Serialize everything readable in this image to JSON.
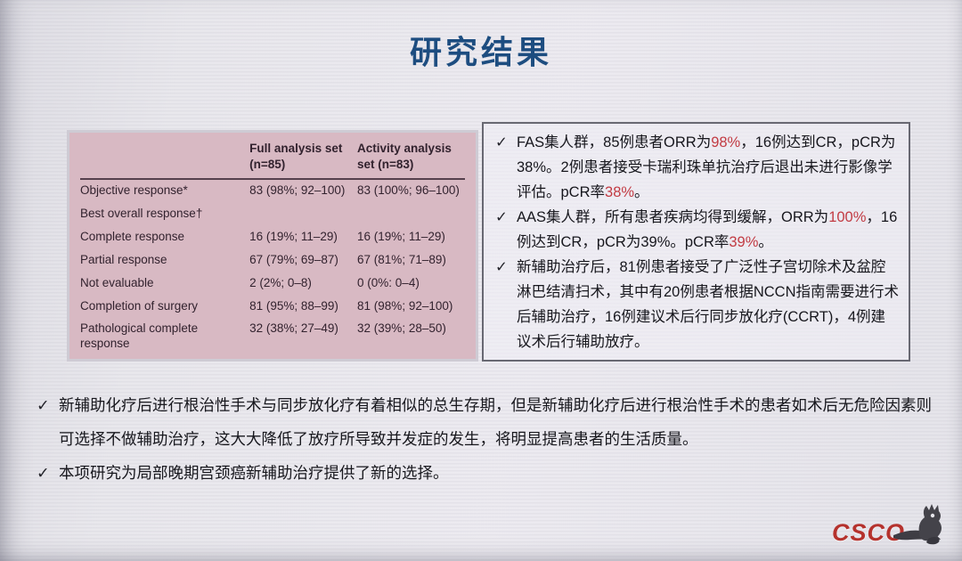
{
  "title": "研究结果",
  "colors": {
    "title_blue": "#1d4d80",
    "highlight_red": "#c23b43",
    "table_bg": "#d8b9c3",
    "table_text": "#32222e",
    "csco_red": "#b5322d"
  },
  "table": {
    "columns": [
      "",
      "Full analysis set (n=85)",
      "Activity analysis set (n=83)"
    ],
    "rows": [
      {
        "label": "Objective response*",
        "indent": 0,
        "full": "83 (98%; 92–100)",
        "activity": "83 (100%; 96–100)"
      },
      {
        "label": "Best overall response†",
        "indent": 1,
        "full": "",
        "activity": ""
      },
      {
        "label": "Complete response",
        "indent": 2,
        "full": "16 (19%; 11–29)",
        "activity": "16 (19%; 11–29)"
      },
      {
        "label": "Partial response",
        "indent": 2,
        "full": "67 (79%; 69–87)",
        "activity": "67 (81%; 71–89)"
      },
      {
        "label": "Not evaluable",
        "indent": 2,
        "full": "2 (2%; 0–8)",
        "activity": "0 (0%: 0–4)"
      },
      {
        "label": "Completion of surgery",
        "indent": 0,
        "full": "81 (95%; 88–99)",
        "activity": "81 (98%; 92–100)"
      },
      {
        "label": "Pathological complete response",
        "indent": 0,
        "full": "32 (38%; 27–49)",
        "activity": "32 (39%; 28–50)"
      }
    ]
  },
  "findings": {
    "bullet_icon": "✓",
    "items": [
      {
        "segments": [
          {
            "text": "FAS集人群，85例患者ORR为"
          },
          {
            "text": "98%",
            "red": true
          },
          {
            "text": "，16例达到CR，pCR为38%。2例患者接受卡瑞利珠单抗治疗后退出未进行影像学评估。pCR率"
          },
          {
            "text": "38%",
            "red": true
          },
          {
            "text": "。"
          }
        ]
      },
      {
        "segments": [
          {
            "text": "AAS集人群，所有患者疾病均得到缓解，ORR为"
          },
          {
            "text": "100%",
            "red": true
          },
          {
            "text": "，16例达到CR，pCR为39%。pCR率"
          },
          {
            "text": "39%",
            "red": true
          },
          {
            "text": "。"
          }
        ]
      },
      {
        "segments": [
          {
            "text": "新辅助治疗后，81例患者接受了广泛性子宫切除术及盆腔淋巴结清扫术，其中有20例患者根据NCCN指南需要进行术后辅助治疗，16例建议术后行同步放化疗(CCRT)，4例建议术后行辅助放疗。"
          }
        ]
      }
    ]
  },
  "conclusions": {
    "bullet_icon": "✓",
    "items": [
      "新辅助化疗后进行根治性手术与同步放化疗有着相似的总生存期，但是新辅助化疗后进行根治性手术的患者如术后无危险因素则可选择不做辅助治疗，这大大降低了放疗所导致并发症的发生，将明显提高患者的生活质量。",
      "本项研究为局部晚期宫颈癌新辅助治疗提供了新的选择。"
    ]
  },
  "logo": {
    "text": "CSCO"
  }
}
